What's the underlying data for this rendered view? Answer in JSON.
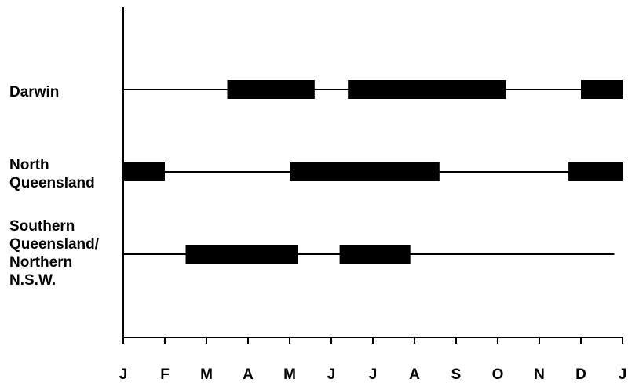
{
  "chart_data": {
    "type": "timeline",
    "title": "",
    "xlabel": "",
    "ylabel": "",
    "months": [
      "J",
      "F",
      "M",
      "A",
      "M",
      "J",
      "J",
      "A",
      "S",
      "O",
      "N",
      "D",
      "J"
    ],
    "x_unit": "month (0 = start of January, 12 = end of December)",
    "xlim": [
      0,
      12
    ],
    "grid": false,
    "rows": [
      {
        "label": "Darwin",
        "label_lines": [
          "Darwin"
        ],
        "line_range": [
          0,
          12
        ],
        "periods": [
          [
            2.5,
            4.6
          ],
          [
            5.4,
            9.2
          ],
          [
            11.0,
            12.0
          ]
        ]
      },
      {
        "label": "North Queensland",
        "label_lines": [
          "North",
          "Queensland"
        ],
        "line_range": [
          0,
          12
        ],
        "periods": [
          [
            0.0,
            1.0
          ],
          [
            4.0,
            7.6
          ],
          [
            10.7,
            12.0
          ]
        ]
      },
      {
        "label": "Southern Queensland/ Northern N.S.W.",
        "label_lines": [
          "Southern",
          "Queensland/",
          "Northern",
          "N.S.W."
        ],
        "line_range": [
          0,
          11.8
        ],
        "periods": [
          [
            1.5,
            4.2
          ],
          [
            5.2,
            6.9
          ]
        ]
      }
    ]
  }
}
